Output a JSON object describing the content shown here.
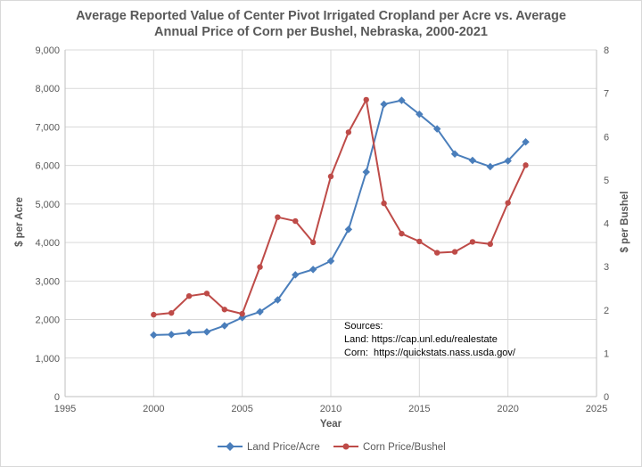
{
  "chart_data": {
    "type": "line",
    "title_lines": [
      "Average Reported Value of Center Pivot Irrigated Cropland per Acre vs. Average",
      "Annual Price of Corn per Bushel, Nebraska, 2000-2021"
    ],
    "xlabel": "Year",
    "ylabel_left": "$ per Acre",
    "ylabel_right": "$ per Bushel",
    "xlim": [
      1995,
      2025
    ],
    "ylim_left": [
      0,
      9000
    ],
    "ylim_right": [
      0,
      8
    ],
    "x_ticks": [
      "1995",
      "2000",
      "2005",
      "2010",
      "2015",
      "2020",
      "2025"
    ],
    "y_left_ticks": [
      "0",
      "1,000",
      "2,000",
      "3,000",
      "4,000",
      "5,000",
      "6,000",
      "7,000",
      "8,000",
      "9,000"
    ],
    "y_right_ticks": [
      "0",
      "1",
      "2",
      "3",
      "4",
      "5",
      "6",
      "7",
      "8"
    ],
    "grid": true,
    "legend_position": "bottom",
    "x": [
      2000,
      2001,
      2002,
      2003,
      2004,
      2005,
      2006,
      2007,
      2008,
      2009,
      2010,
      2011,
      2012,
      2013,
      2014,
      2015,
      2016,
      2017,
      2018,
      2019,
      2020,
      2021
    ],
    "series": [
      {
        "name": "Land Price/Acre",
        "axis": "left",
        "color": "#4a7ebb",
        "marker": "diamond",
        "values": [
          1600,
          1610,
          1660,
          1680,
          1840,
          2050,
          2200,
          2510,
          3160,
          3300,
          3520,
          4340,
          5830,
          7590,
          7690,
          7330,
          6950,
          6300,
          6130,
          5970,
          6120,
          6610
        ]
      },
      {
        "name": "Corn Price/Bushel",
        "axis": "right",
        "color": "#be4b48",
        "marker": "circle",
        "values": [
          1.89,
          1.93,
          2.32,
          2.38,
          2.01,
          1.91,
          2.99,
          4.14,
          4.05,
          3.56,
          5.08,
          6.1,
          6.85,
          4.46,
          3.76,
          3.58,
          3.32,
          3.34,
          3.57,
          3.52,
          4.47,
          5.34
        ]
      }
    ],
    "annotation": {
      "lines": [
        "Sources:",
        "Land: https://cap.unl.edu/realestate",
        "Corn:  https://quickstats.nass.usda.gov/"
      ]
    }
  }
}
